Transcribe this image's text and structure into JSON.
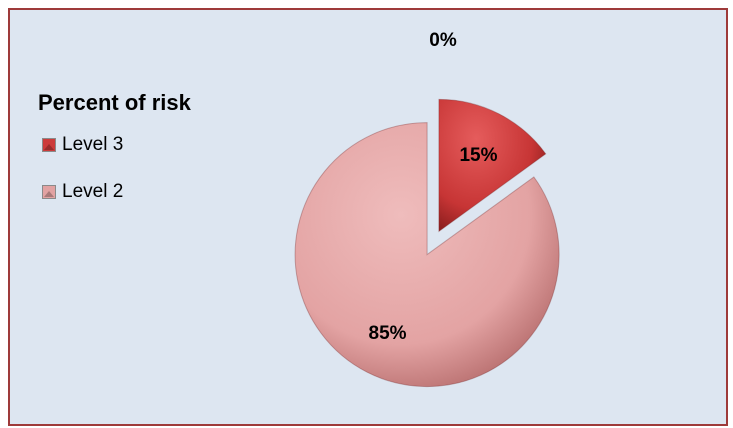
{
  "chart_data": {
    "type": "pie",
    "legend_title": "Percent of risk",
    "legend_position": "left",
    "slices": [
      {
        "name": "Level 3",
        "value": 15,
        "label": "15%",
        "color": "#cc3b3b"
      },
      {
        "name": "Level 2",
        "value": 85,
        "label": "85%",
        "color": "#e2a2a2"
      },
      {
        "name": "",
        "value": 0,
        "label": "0%",
        "color": "#e2a2a2"
      }
    ],
    "legend": [
      {
        "label": "Level 3",
        "color": "#cc3b3b"
      },
      {
        "label": "Level 2",
        "color": "#e2a2a2"
      }
    ],
    "exploded": true
  }
}
